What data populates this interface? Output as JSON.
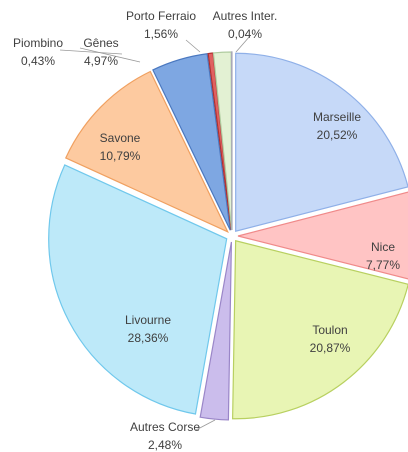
{
  "chart_data": {
    "type": "pie",
    "categories": [
      "Marseille",
      "Nice",
      "Toulon",
      "Autres Corse",
      "Livourne",
      "Savone",
      "Gênes",
      "Piombino",
      "Porto Ferraio",
      "Autres Inter."
    ],
    "values": [
      20.52,
      7.77,
      20.87,
      2.48,
      28.36,
      10.79,
      4.97,
      0.43,
      1.56,
      0.04
    ],
    "value_labels": [
      "20,52%",
      "7,77%",
      "20,87%",
      "2,48%",
      "28,36%",
      "10,79%",
      "4,97%",
      "0,43%",
      "1,56%",
      "0,04%"
    ],
    "colors": [
      "#c6d9f8",
      "#ffc4c4",
      "#e8f5b4",
      "#cbbdec",
      "#bde9f9",
      "#fdcaa0",
      "#7ea7e2",
      "#e06060",
      "#e3f1d3",
      "#e2e2ea"
    ]
  }
}
